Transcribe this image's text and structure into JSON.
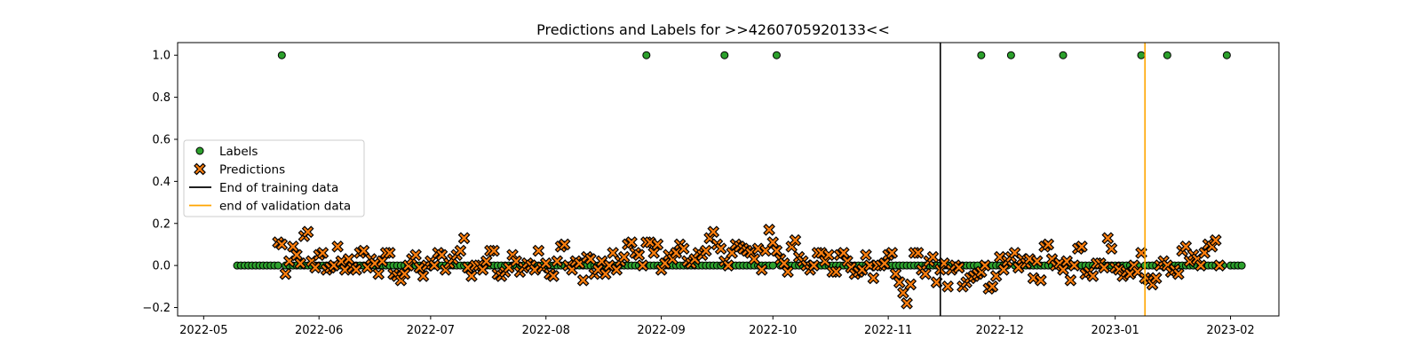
{
  "chart_data": {
    "type": "scatter",
    "title": "Predictions and Labels for >>4260705920133<<",
    "xlabel": "",
    "ylabel": "",
    "x_type": "date",
    "xlim": [
      "2022-04-24",
      "2023-02-14"
    ],
    "ylim": [
      -0.24,
      1.06
    ],
    "x_ticks": [
      "2022-05-01",
      "2022-06-01",
      "2022-07-01",
      "2022-08-01",
      "2022-09-01",
      "2022-10-01",
      "2022-11-01",
      "2022-12-01",
      "2023-01-01",
      "2023-02-01"
    ],
    "x_tick_labels": [
      "2022-05",
      "2022-06",
      "2022-07",
      "2022-08",
      "2022-09",
      "2022-10",
      "2022-11",
      "2022-12",
      "2023-01",
      "2023-02"
    ],
    "y_ticks": [
      -0.2,
      0.0,
      0.2,
      0.4,
      0.6,
      0.8,
      1.0
    ],
    "y_tick_labels": [
      "−0.2",
      "0.0",
      "0.2",
      "0.4",
      "0.6",
      "0.8",
      "1.0"
    ],
    "grid": false,
    "legend_position": "center-left",
    "colors": {
      "labels": "#2ca02c",
      "predictions": "#ff7f0e",
      "marker_edge": "#000000",
      "training_line": "#000000",
      "validation_line": "#ffa500"
    },
    "labels_date_range": [
      "2022-05-10",
      "2023-02-04"
    ],
    "label_positive_dates": [
      "2022-05-22",
      "2022-08-28",
      "2022-09-18",
      "2022-10-02",
      "2022-11-26",
      "2022-12-04",
      "2022-12-18",
      "2023-01-08",
      "2023-01-15",
      "2023-01-31"
    ],
    "predictions_date_range": [
      "2022-05-21",
      "2023-02-01"
    ],
    "predictions": [
      0.11,
      0.1,
      -0.04,
      0.02,
      0.09,
      0.05,
      0.01,
      0.14,
      0.16,
      0.02,
      -0.01,
      0.05,
      0.06,
      -0.02,
      -0.01,
      0.0,
      0.09,
      0.02,
      -0.02,
      0.03,
      -0.01,
      -0.02,
      0.06,
      0.07,
      -0.01,
      0.03,
      0.01,
      -0.04,
      0.02,
      0.06,
      0.06,
      -0.04,
      -0.05,
      -0.07,
      -0.04,
      0.0,
      0.03,
      0.05,
      -0.01,
      -0.05,
      0.0,
      0.02,
      0.0,
      0.06,
      0.05,
      -0.02,
      0.01,
      0.03,
      0.05,
      0.07,
      0.13,
      -0.01,
      -0.05,
      0.0,
      0.0,
      -0.02,
      0.02,
      0.07,
      0.07,
      -0.04,
      -0.05,
      -0.03,
      -0.01,
      0.05,
      0.02,
      -0.03,
      -0.01,
      0.01,
      0.0,
      -0.02,
      0.07,
      -0.01,
      0.01,
      -0.04,
      -0.05,
      0.02,
      0.09,
      0.1,
      0.0,
      -0.02,
      0.02,
      0.01,
      -0.07,
      0.04,
      0.03,
      -0.04,
      -0.02,
      0.02,
      -0.04,
      0.0,
      0.06,
      -0.02,
      0.02,
      0.04,
      0.1,
      0.11,
      0.06,
      0.05,
      0.0,
      0.11,
      0.11,
      0.06,
      0.1,
      -0.02,
      0.01,
      0.05,
      0.03,
      0.06,
      0.1,
      0.08,
      0.02,
      0.01,
      0.03,
      0.06,
      0.05,
      0.07,
      0.13,
      0.16,
      0.1,
      0.08,
      0.02,
      0.0,
      0.06,
      0.1,
      0.09,
      0.08,
      0.07,
      0.06,
      0.03,
      0.08,
      -0.02,
      0.07,
      0.17,
      0.11,
      0.07,
      0.03,
      0.01,
      -0.03,
      0.09,
      0.12,
      0.04,
      0.02,
      0.0,
      -0.02,
      0.0,
      0.06,
      0.06,
      0.02,
      0.05,
      -0.03,
      -0.03,
      0.05,
      0.06,
      0.02,
      -0.01,
      -0.04,
      -0.03,
      -0.02,
      0.05,
      0.0,
      -0.06,
      0.0,
      0.0,
      0.01,
      0.05,
      0.06,
      -0.04,
      -0.08,
      -0.13,
      -0.18,
      -0.09,
      0.06,
      0.06,
      -0.02,
      -0.04,
      0.02,
      0.04,
      -0.08,
      -0.02,
      0.01,
      -0.1,
      -0.02,
      0.0,
      -0.01,
      -0.1,
      -0.08,
      -0.06,
      -0.05,
      -0.04,
      -0.03,
      0.0,
      -0.11,
      -0.1,
      -0.05,
      0.04,
      -0.02,
      0.02,
      0.04,
      0.06,
      -0.01,
      0.03,
      0.01,
      0.03,
      -0.06,
      0.02,
      -0.07,
      0.09,
      0.1,
      0.03,
      0.0,
      0.01,
      -0.02,
      0.02,
      -0.07,
      0.0,
      0.08,
      0.09,
      -0.04,
      -0.03,
      -0.05,
      0.01,
      0.01,
      -0.01,
      0.13,
      0.08,
      -0.01,
      -0.02,
      -0.05,
      -0.03,
      -0.04,
      0.0,
      -0.03,
      0.06,
      -0.06,
      -0.07,
      -0.09,
      -0.06,
      0.0,
      0.02,
      0.0,
      -0.03,
      -0.02,
      -0.04,
      0.07,
      0.09,
      0.02,
      0.05,
      0.03,
      0.0,
      0.06,
      0.1,
      0.09,
      0.12,
      0.0
    ],
    "series": [
      {
        "name": "Labels",
        "marker": "circle"
      },
      {
        "name": "Predictions",
        "marker": "x"
      },
      {
        "name": "End of training data",
        "marker": "vline",
        "x": "2022-11-15"
      },
      {
        "name": "end of validation data",
        "marker": "vline",
        "x": "2023-01-09"
      }
    ]
  }
}
